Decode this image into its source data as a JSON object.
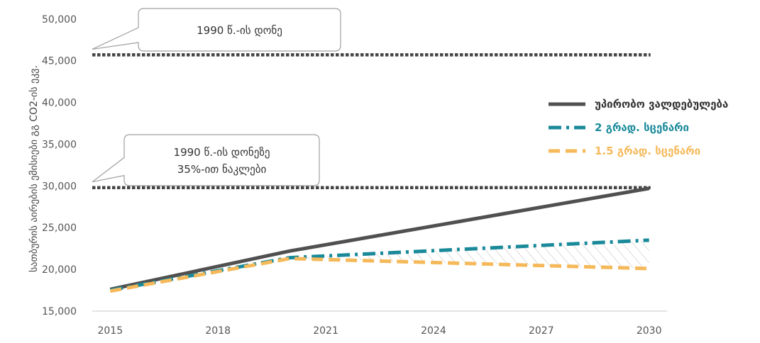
{
  "chart_data": {
    "type": "line",
    "ylabel": "სათბურის აირების ემისიები გგ CO2-ის ეკვ.",
    "xlabel": "",
    "title": "",
    "x": [
      2015,
      2020,
      2030
    ],
    "xticks": [
      2015,
      2018,
      2021,
      2024,
      2027,
      2030
    ],
    "xtick_labels": [
      "2015",
      "2018",
      "2021",
      "2024",
      "2027",
      "2030"
    ],
    "xlim": [
      2014.5,
      2030.5
    ],
    "ylim": [
      15000,
      51000
    ],
    "yticks": [
      15000,
      20000,
      25000,
      30000,
      35000,
      40000,
      45000,
      50000
    ],
    "ytick_labels": [
      "15,000",
      "20,000",
      "25,000",
      "30,000",
      "35,000",
      "40,000",
      "45,000",
      "50,000"
    ],
    "series": [
      {
        "name": "უპირობო ვალდებულება",
        "color": "#505050",
        "style": "solid",
        "values": [
          17600,
          22200,
          29700
        ]
      },
      {
        "name": "2 გრად. სცენარი",
        "color": "#1a8a9a",
        "style": "dashdot",
        "values": [
          17500,
          21400,
          23500
        ]
      },
      {
        "name": "1.5 გრად. სცენარი",
        "color": "#f5b95a",
        "style": "dashed",
        "values": [
          17400,
          21300,
          20100
        ]
      }
    ],
    "reference_lines": [
      {
        "value": 45700,
        "label": "1990 წ.-ის დონე"
      },
      {
        "value": 29800,
        "label": "1990 წ.-ის დონეზე\n35%-ით ნაკლები"
      }
    ],
    "shaded_region": {
      "between": [
        "2 გრად. სცენარი",
        "1.5 გრად. სცენარი"
      ],
      "from": 2020,
      "to": 2030,
      "pattern": "hatch"
    },
    "legend_position": "right",
    "grid": false
  }
}
